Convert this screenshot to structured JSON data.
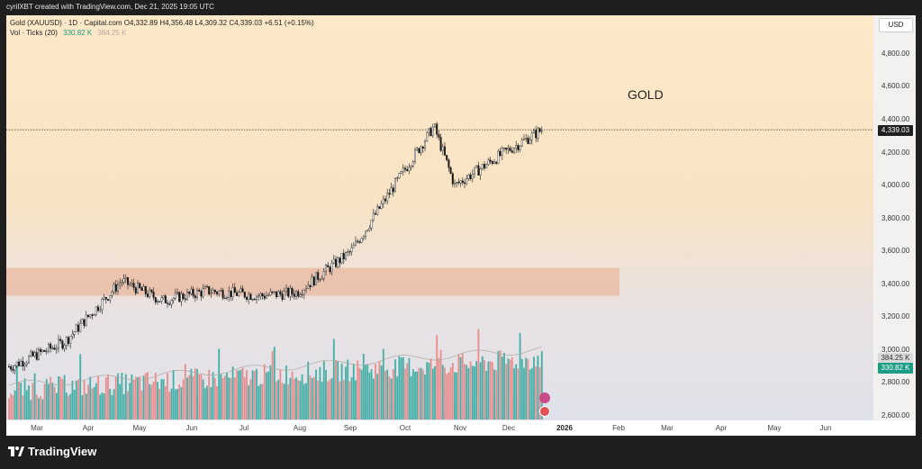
{
  "header": {
    "created_by": "cyrilXBT created with TradingView.com, Dec 21, 2025 19:05 UTC"
  },
  "legend": {
    "symbol": "Gold (XAUUSD) · 1D · Capital.com",
    "open": "O4,332.89",
    "high": "H4,356.48",
    "low": "L4,309.32",
    "close": "C4,339.03",
    "change": "+6.51 (+0.15%)",
    "volume_label": "Vol · Ticks (20)",
    "volume_value": "330.82 K",
    "volume_ma": "384.25 K"
  },
  "currency": "USD",
  "annotation": "GOLD",
  "brand": "TradingView",
  "price_axis": {
    "ticks": [
      "4,800.00",
      "4,600.00",
      "4,400.00",
      "4,200.00",
      "4,000.00",
      "3,800.00",
      "3,600.00",
      "3,400.00",
      "3,200.00",
      "3,000.00",
      "2,800.00",
      "2,600.00"
    ],
    "last_price": "4,339.03",
    "volume_ma_badge": "384.25 K",
    "volume_badge": "330.82 K"
  },
  "time_axis": {
    "ticks": [
      "Mar",
      "Apr",
      "May",
      "Jun",
      "Jul",
      "Aug",
      "Sep",
      "Oct",
      "Nov",
      "Dec",
      "2026",
      "Feb",
      "Mar",
      "Apr",
      "May",
      "Jun"
    ],
    "bold_tick": "2026"
  },
  "colors": {
    "up": "#26a69a",
    "down": "#ef5350",
    "zone": "#e9a98a",
    "badge_dark": "#1f1f1f",
    "badge_vol": "#1b9c85"
  },
  "chart_data": {
    "type": "candlestick",
    "symbol": "XAUUSD",
    "interval": "1D",
    "y_range": [
      2600,
      4900
    ],
    "last_close": 4339.03,
    "support_zone": [
      3330,
      3500
    ],
    "monthly_path": [
      {
        "month": "Mar",
        "price": 2900
      },
      {
        "month": "Apr",
        "price": 3050
      },
      {
        "month": "Apr",
        "price": 3420
      },
      {
        "month": "May",
        "price": 3300
      },
      {
        "month": "Jun",
        "price": 3360
      },
      {
        "month": "Jul",
        "price": 3330
      },
      {
        "month": "Aug",
        "price": 3350
      },
      {
        "month": "Sep",
        "price": 3600
      },
      {
        "month": "Oct",
        "price": 4100
      },
      {
        "month": "Oct",
        "price": 4360
      },
      {
        "month": "Nov",
        "price": 4000
      },
      {
        "month": "Dec",
        "price": 4200
      },
      {
        "month": "Dec",
        "price": 4339
      }
    ],
    "volume_ma_last": 384250,
    "volume_last": 330820
  }
}
